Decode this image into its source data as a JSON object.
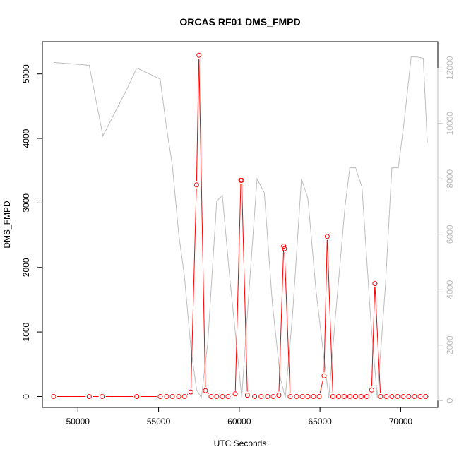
{
  "chart_data": {
    "type": "line",
    "title": "ORCAS RF01 DMS_FMPD",
    "xlabel": "UTC Seconds",
    "ylabel": "DMS_FMPD",
    "xlim": [
      47800,
      72300
    ],
    "ylim": [
      -170,
      5500
    ],
    "y2lim": [
      -250,
      12950
    ],
    "x_ticks": [
      50000,
      55000,
      60000,
      65000,
      70000
    ],
    "y_ticks": [
      0,
      1000,
      2000,
      3000,
      4000,
      5000
    ],
    "y2_ticks": [
      0,
      2000,
      4000,
      6000,
      8000,
      10000,
      12000
    ],
    "colors": {
      "primary": "#ff0000",
      "secondary": "#bdbdbd",
      "axis": "#000000"
    },
    "primary_series": {
      "name": "DMS_FMPD",
      "style": "points-and-lines",
      "x": [
        48500,
        50700,
        51500,
        53650,
        55100,
        55500,
        55850,
        56250,
        56600,
        57000,
        57350,
        57500,
        57900,
        58250,
        58600,
        58950,
        59300,
        59750,
        60100,
        60150,
        60500,
        60950,
        61350,
        61750,
        62100,
        62450,
        62750,
        62800,
        63150,
        63550,
        63900,
        64250,
        64600,
        64950,
        65250,
        65450,
        65800,
        66150,
        66500,
        66850,
        67200,
        67550,
        67900,
        68200,
        68400,
        68750,
        69100,
        69450,
        69800,
        70150,
        70500,
        70850,
        71200,
        71550
      ],
      "y": [
        0,
        0,
        0,
        0,
        0,
        0,
        0,
        0,
        0,
        70,
        3280,
        5290,
        90,
        0,
        0,
        0,
        0,
        40,
        3350,
        3350,
        20,
        0,
        0,
        0,
        0,
        20,
        2330,
        2290,
        0,
        0,
        0,
        0,
        0,
        0,
        320,
        2480,
        0,
        0,
        0,
        0,
        0,
        0,
        0,
        100,
        1750,
        0,
        0,
        0,
        0,
        0,
        0,
        0,
        0,
        0
      ]
    },
    "secondary_series": {
      "style": "line",
      "x": [
        48500,
        50700,
        51550,
        53000,
        53650,
        55100,
        55500,
        55850,
        56250,
        56600,
        57000,
        57350,
        57650,
        58050,
        58600,
        58950,
        59400,
        59850,
        60150,
        60550,
        61100,
        61550,
        62050,
        62550,
        62850,
        63300,
        63850,
        64250,
        64750,
        65250,
        65550,
        65950,
        66550,
        66850,
        67200,
        67600,
        68150,
        68550,
        69050,
        69450,
        69850,
        70200,
        70650,
        71000,
        71400,
        71650
      ],
      "y": [
        12200,
        12100,
        9550,
        11200,
        12000,
        11600,
        9800,
        8500,
        6000,
        4500,
        1900,
        400,
        100,
        2100,
        7200,
        7400,
        4500,
        1900,
        100,
        3500,
        8000,
        7500,
        3500,
        800,
        100,
        3100,
        8000,
        7300,
        4000,
        1500,
        100,
        3000,
        7000,
        8400,
        8400,
        7700,
        2900,
        100,
        4100,
        8400,
        8400,
        10000,
        12400,
        12400,
        12350,
        9300
      ]
    }
  }
}
